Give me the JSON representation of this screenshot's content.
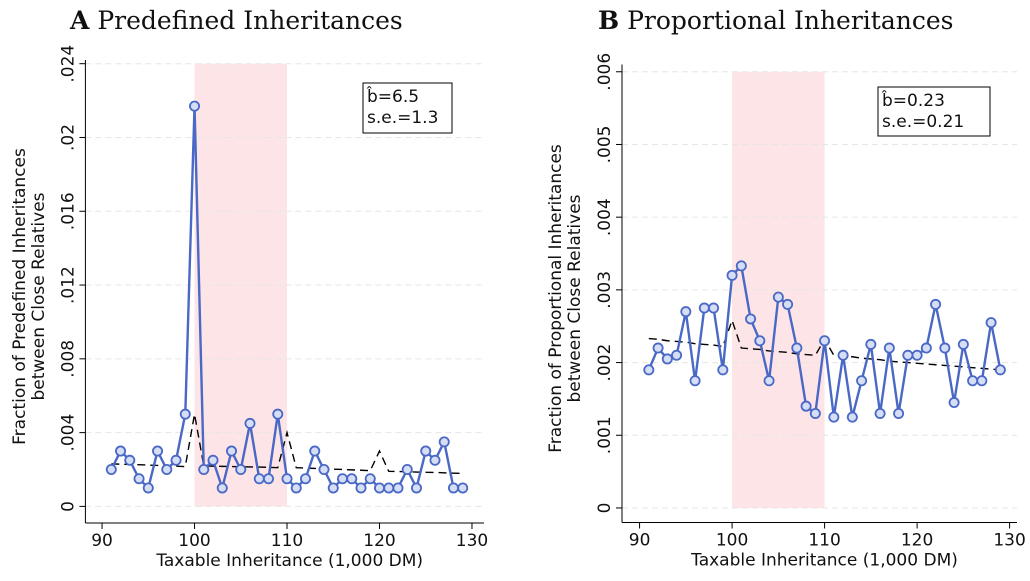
{
  "chart_data": [
    {
      "type": "line",
      "panel": "A",
      "title": "Predefined Inheritances",
      "xlabel": "Taxable Inheritance (1,000 DM)",
      "ylabel": [
        "Fraction of Predefined Inheritances",
        "between Close Relatives"
      ],
      "annotation": [
        "b̂=6.5",
        "s.e.=1.3"
      ],
      "shade": [
        100,
        110
      ],
      "shade_color": "#fde4e6",
      "grid": true,
      "x": [
        91,
        92,
        93,
        94,
        95,
        96,
        97,
        98,
        99,
        100,
        101,
        102,
        103,
        104,
        105,
        106,
        107,
        108,
        109,
        110,
        111,
        112,
        113,
        114,
        115,
        116,
        117,
        118,
        119,
        120,
        121,
        122,
        123,
        124,
        125,
        126,
        127,
        128,
        129
      ],
      "series": [
        {
          "color": "#4a68c6",
          "style": "markers",
          "values": [
            0.002,
            0.003,
            0.0025,
            0.0015,
            0.001,
            0.003,
            0.002,
            0.0025,
            0.005,
            0.0217,
            0.002,
            0.0025,
            0.001,
            0.003,
            0.002,
            0.0045,
            0.0015,
            0.0015,
            0.005,
            0.0015,
            0.001,
            0.0015,
            0.003,
            0.002,
            0.001,
            0.0015,
            0.0015,
            0.001,
            0.0015,
            0.001,
            0.001,
            0.001,
            0.002,
            0.001,
            0.003,
            0.0025,
            0.0035,
            0.001,
            0.001
          ]
        },
        {
          "color": "#000000",
          "style": "dashed",
          "values": [
            0.0023,
            0.00229,
            0.00227,
            0.00226,
            0.00224,
            0.00222,
            0.0022,
            0.00218,
            0.00216,
            0.005,
            0.0022,
            0.00218,
            0.00217,
            0.00216,
            0.00215,
            0.00214,
            0.00213,
            0.00212,
            0.0021,
            0.004,
            0.0021,
            0.00208,
            0.00206,
            0.00204,
            0.00202,
            0.002,
            0.00198,
            0.00196,
            0.00194,
            0.003,
            0.0019,
            0.00189,
            0.00188,
            0.00186,
            0.00185,
            0.00184,
            0.00182,
            0.0018,
            0.00179
          ]
        }
      ],
      "xlim": [
        88.2,
        131.3
      ],
      "xticks": [
        90,
        100,
        110,
        120,
        130
      ],
      "ylim": [
        -0.0009,
        0.0242
      ],
      "yticks": [
        0,
        {
          "value": 0.004,
          "label": ".004"
        },
        {
          "value": 0.008,
          "label": ".008"
        },
        {
          "value": 0.012,
          "label": ".012"
        },
        {
          "value": 0.016,
          "label": ".016"
        },
        {
          "value": 0.02,
          "label": ".02"
        },
        {
          "value": 0.024,
          "label": ".024"
        }
      ]
    },
    {
      "type": "line",
      "panel": "B",
      "title": "Proportional Inheritances",
      "xlabel": "Taxable Inheritance (1,000 DM)",
      "ylabel": [
        "Fraction of Proportional Inheritances",
        "between Close Relatives"
      ],
      "annotation": [
        "b̂=0.23",
        "s.e.=0.21"
      ],
      "shade": [
        100,
        110
      ],
      "shade_color": "#fde4e6",
      "grid": true,
      "x": [
        91,
        92,
        93,
        94,
        95,
        96,
        97,
        98,
        99,
        100,
        101,
        102,
        103,
        104,
        105,
        106,
        107,
        108,
        109,
        110,
        111,
        112,
        113,
        114,
        115,
        116,
        117,
        118,
        119,
        120,
        121,
        122,
        123,
        124,
        125,
        126,
        127,
        128,
        129
      ],
      "series": [
        {
          "color": "#4a68c6",
          "style": "markers",
          "values": [
            0.0019,
            0.0022,
            0.00205,
            0.0021,
            0.0027,
            0.00175,
            0.00275,
            0.00275,
            0.0019,
            0.0032,
            0.00333,
            0.0026,
            0.0023,
            0.00175,
            0.0029,
            0.0028,
            0.0022,
            0.0014,
            0.0013,
            0.0023,
            0.00125,
            0.0021,
            0.00125,
            0.00175,
            0.00225,
            0.0013,
            0.0022,
            0.0013,
            0.0021,
            0.0021,
            0.0022,
            0.0028,
            0.0022,
            0.00145,
            0.00225,
            0.00175,
            0.00175,
            0.00255,
            0.0019
          ]
        },
        {
          "color": "#000000",
          "style": "dashed",
          "values": [
            0.00233,
            0.00232,
            0.0023,
            0.00229,
            0.00228,
            0.00226,
            0.00225,
            0.00224,
            0.00222,
            0.00258,
            0.0022,
            0.00219,
            0.00218,
            0.00216,
            0.00215,
            0.00214,
            0.00212,
            0.00211,
            0.0021,
            0.00232,
            0.0021,
            0.00209,
            0.00208,
            0.00206,
            0.00205,
            0.00204,
            0.00202,
            0.00201,
            0.002,
            0.00199,
            0.00198,
            0.00197,
            0.00196,
            0.00195,
            0.00194,
            0.00193,
            0.00192,
            0.00191,
            0.0019
          ]
        }
      ],
      "xlim": [
        88.1,
        130.8
      ],
      "xticks": [
        90,
        100,
        110,
        120,
        130
      ],
      "ylim": [
        -0.0002,
        0.0061
      ],
      "yticks": [
        0,
        {
          "value": 0.001,
          "label": ".001"
        },
        {
          "value": 0.002,
          "label": ".002"
        },
        {
          "value": 0.003,
          "label": ".003"
        },
        {
          "value": 0.004,
          "label": ".004"
        },
        {
          "value": 0.005,
          "label": ".005"
        },
        {
          "value": 0.006,
          "label": ".006"
        }
      ]
    }
  ]
}
